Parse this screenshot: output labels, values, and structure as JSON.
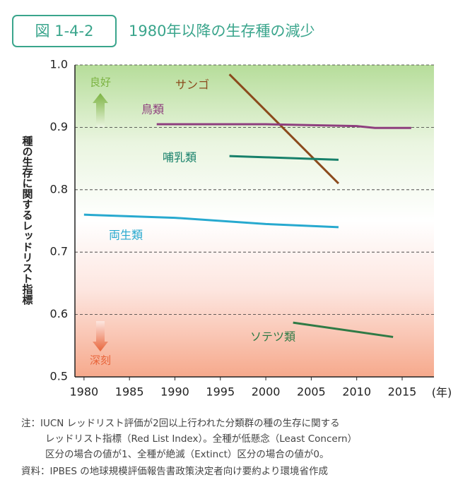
{
  "chart_data": {
    "type": "line",
    "figure_label": "図 1-4-2",
    "title": "1980年以降の生存種の減少",
    "ylabel": "種の生存に関するレッドリスト指標",
    "xunit": "(年)",
    "good_label": "良好",
    "bad_label": "深刻",
    "xlim": [
      1979,
      2018.5
    ],
    "xticks": [
      1980,
      1985,
      1990,
      1995,
      2000,
      2005,
      2010,
      2015
    ],
    "ylim": [
      0.5,
      1
    ],
    "yticks": [
      0.5,
      0.6,
      0.7,
      0.8,
      0.9,
      {
        "value": 1,
        "label": "1.0"
      }
    ],
    "grid": true,
    "series": [
      {
        "name": "サンゴ",
        "color": "#8b4a1c",
        "x": [
          1996,
          2008
        ],
        "values": [
          0.985,
          0.81
        ]
      },
      {
        "name": "鳥類",
        "color": "#8e3f7e",
        "x": [
          1988,
          2000,
          2010,
          2012,
          2016
        ],
        "values": [
          0.905,
          0.905,
          0.902,
          0.899,
          0.899
        ]
      },
      {
        "name": "哺乳類",
        "color": "#17806a",
        "x": [
          1996,
          2000,
          2008
        ],
        "values": [
          0.854,
          0.852,
          0.848
        ]
      },
      {
        "name": "両生類",
        "color": "#27a9cf",
        "x": [
          1980,
          1990,
          2000,
          2008
        ],
        "values": [
          0.76,
          0.755,
          0.745,
          0.74
        ]
      },
      {
        "name": "ソテツ類",
        "color": "#2f7a45",
        "x": [
          2003,
          2014
        ],
        "values": [
          0.587,
          0.564
        ]
      }
    ],
    "notes": [
      "注：IUCN レッドリスト評価が2回以上行われた分類群の種の生存に関する",
      "レッドリスト指標（Red List Index）。全種が低懸念（Least Concern）",
      "区分の場合の値が1、全種が絶滅（Extinct）区分の場合の値が0。"
    ],
    "source": "資料：IPBES の地球規模評価報告書政策決定者向け要約より環境省作成"
  }
}
